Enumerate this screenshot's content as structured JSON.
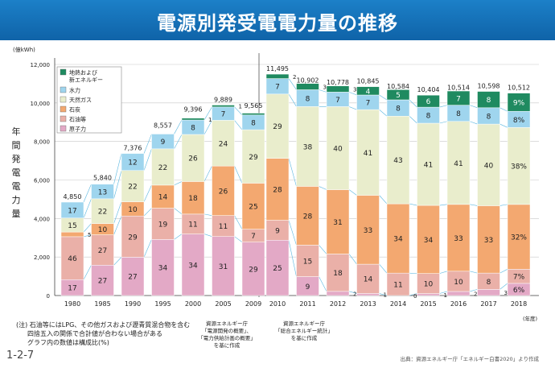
{
  "page_number": "1-2-7",
  "credit": "出典：資源エネルギー庁「エネルギー白書2020」より作成",
  "notes": [
    "(注) 石油等にはLPG、その他ガスおよび瀝青質混合物を含む",
    "四捨五入の関係で合計値が合わない場合がある",
    "グラフ内の数値は構成比(%)"
  ],
  "sources": {
    "left": [
      "資源エネルギー庁",
      "「電源開発の概要」、",
      "「電力供給計画の概要」",
      "を基に作成"
    ],
    "right": [
      "資源エネルギー庁",
      "「総合エネルギー統計」",
      "を基に作成"
    ]
  },
  "chart_data": {
    "type": "bar",
    "title": "電源別発受電電力量の推移",
    "yunit": "(億kWh)",
    "xunit": "(年度)",
    "ylabel": "年間発電電力量",
    "ylim": [
      0,
      12000
    ],
    "yticks": [
      "0",
      "2,000",
      "4,000",
      "6,000",
      "8,000",
      "10,000",
      "12,000"
    ],
    "grid": true,
    "legend_position": "top-left",
    "categories": [
      "1980",
      "1985",
      "1990",
      "1995",
      "2000",
      "2005",
      "2009",
      "2010",
      "2011",
      "2012",
      "2013",
      "2014",
      "2015",
      "2016",
      "2017",
      "2018"
    ],
    "totals": [
      4850,
      5840,
      7376,
      8557,
      9396,
      9889,
      9565,
      11495,
      10902,
      10778,
      10845,
      10584,
      10404,
      10514,
      10598,
      10512
    ],
    "total_labels": [
      "4,850",
      "5,840",
      "7,376",
      "8,557",
      "9,396",
      "9,889",
      "9,565",
      "11,495",
      "10,902",
      "10,778",
      "10,845",
      "10,584",
      "10,404",
      "10,514",
      "10,598",
      "10,512"
    ],
    "series": [
      {
        "name": "原子力",
        "color": "#e3a9c6",
        "values": [
          17,
          27,
          27,
          34,
          34,
          31,
          29,
          25,
          9,
          2,
          1,
          0,
          1,
          2,
          3,
          6
        ],
        "labels": [
          "17",
          "27",
          "27",
          "34",
          "34",
          "31",
          "29",
          "25",
          "9",
          "2",
          "1",
          "0",
          "1",
          "2",
          "3",
          "6%"
        ]
      },
      {
        "name": "石油等",
        "color": "#eab0a8",
        "values": [
          46,
          27,
          29,
          19,
          11,
          11,
          7,
          9,
          15,
          18,
          14,
          11,
          10,
          10,
          8,
          7
        ],
        "labels": [
          "46",
          "27",
          "29",
          "19",
          "11",
          "11",
          "7",
          "9",
          "15",
          "18",
          "14",
          "11",
          "10",
          "10",
          "8",
          "7%"
        ]
      },
      {
        "name": "石炭",
        "color": "#f3a870",
        "values": [
          5,
          10,
          10,
          14,
          18,
          26,
          25,
          28,
          28,
          31,
          33,
          34,
          34,
          33,
          33,
          32
        ],
        "labels": [
          "5",
          "10",
          "10",
          "14",
          "18",
          "26",
          "25",
          "28",
          "28",
          "31",
          "33",
          "34",
          "34",
          "33",
          "33",
          "32%"
        ]
      },
      {
        "name": "天然ガス",
        "color": "#e9edcc",
        "values": [
          15,
          22,
          22,
          22,
          26,
          24,
          29,
          29,
          38,
          40,
          41,
          43,
          41,
          41,
          40,
          38
        ],
        "labels": [
          "15",
          "22",
          "22",
          "22",
          "26",
          "24",
          "29",
          "29",
          "38",
          "40",
          "41",
          "43",
          "41",
          "41",
          "40",
          "38%"
        ]
      },
      {
        "name": "水力",
        "color": "#9fd5ee",
        "values": [
          17,
          13,
          12,
          9,
          8,
          7,
          8,
          7,
          8,
          7,
          7,
          8,
          8,
          8,
          8,
          8
        ],
        "labels": [
          "17",
          "13",
          "12",
          "9",
          "8",
          "7",
          "8",
          "7",
          "8",
          "7",
          "7",
          "8",
          "8",
          "8",
          "8",
          "8%"
        ]
      },
      {
        "name": "地熱および新エネルギー",
        "color": "#1f8a60",
        "values": [
          0,
          0,
          0,
          0,
          1,
          1,
          1,
          2,
          3,
          3,
          4,
          5,
          6,
          7,
          8,
          9
        ],
        "labels": [
          "",
          "",
          "",
          "",
          "1",
          "1",
          "1",
          "2",
          "3",
          "3",
          "4",
          "5",
          "6",
          "7",
          "8",
          "9%"
        ]
      }
    ]
  }
}
